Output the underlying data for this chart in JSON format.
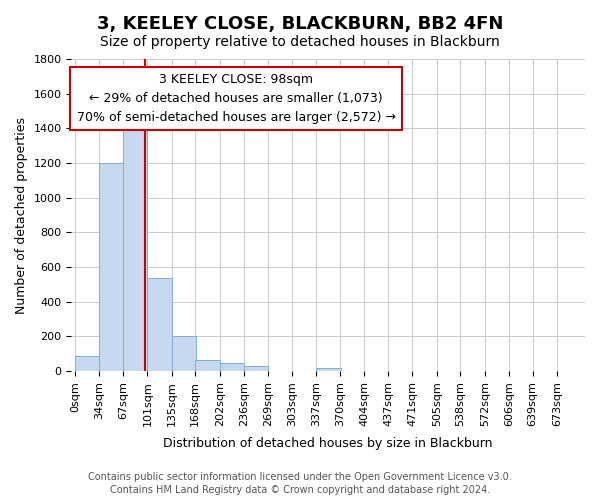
{
  "title": "3, KEELEY CLOSE, BLACKBURN, BB2 4FN",
  "subtitle": "Size of property relative to detached houses in Blackburn",
  "xlabel": "Distribution of detached houses by size in Blackburn",
  "ylabel": "Number of detached properties",
  "bin_labels": [
    "0sqm",
    "34sqm",
    "67sqm",
    "101sqm",
    "135sqm",
    "168sqm",
    "202sqm",
    "236sqm",
    "269sqm",
    "303sqm",
    "337sqm",
    "370sqm",
    "404sqm",
    "437sqm",
    "471sqm",
    "505sqm",
    "538sqm",
    "572sqm",
    "606sqm",
    "639sqm",
    "673sqm"
  ],
  "bin_edges": [
    0,
    34,
    67,
    101,
    135,
    168,
    202,
    236,
    269,
    303,
    337,
    370,
    404,
    437,
    471,
    505,
    538,
    572,
    606,
    639,
    673
  ],
  "bar_heights": [
    90,
    1200,
    1460,
    540,
    200,
    65,
    48,
    30,
    0,
    0,
    20,
    0,
    0,
    0,
    0,
    0,
    0,
    0,
    0,
    0
  ],
  "bar_color": "#c6d9f1",
  "bar_edgecolor": "#7bafd4",
  "property_value": 98,
  "annotation_title": "3 KEELEY CLOSE: 98sqm",
  "annotation_line1": "← 29% of detached houses are smaller (1,073)",
  "annotation_line2": "70% of semi-detached houses are larger (2,572) →",
  "annotation_box_edgecolor": "#cc0000",
  "vline_color": "#cc0000",
  "ylim": [
    0,
    1800
  ],
  "yticks": [
    0,
    200,
    400,
    600,
    800,
    1000,
    1200,
    1400,
    1600,
    1800
  ],
  "footer1": "Contains HM Land Registry data © Crown copyright and database right 2024.",
  "footer2": "Contains public sector information licensed under the Open Government Licence v3.0.",
  "background_color": "#ffffff",
  "grid_color": "#cccccc",
  "title_fontsize": 13,
  "subtitle_fontsize": 10,
  "annotation_fontsize": 9,
  "axis_label_fontsize": 9,
  "tick_fontsize": 8,
  "footer_fontsize": 7
}
